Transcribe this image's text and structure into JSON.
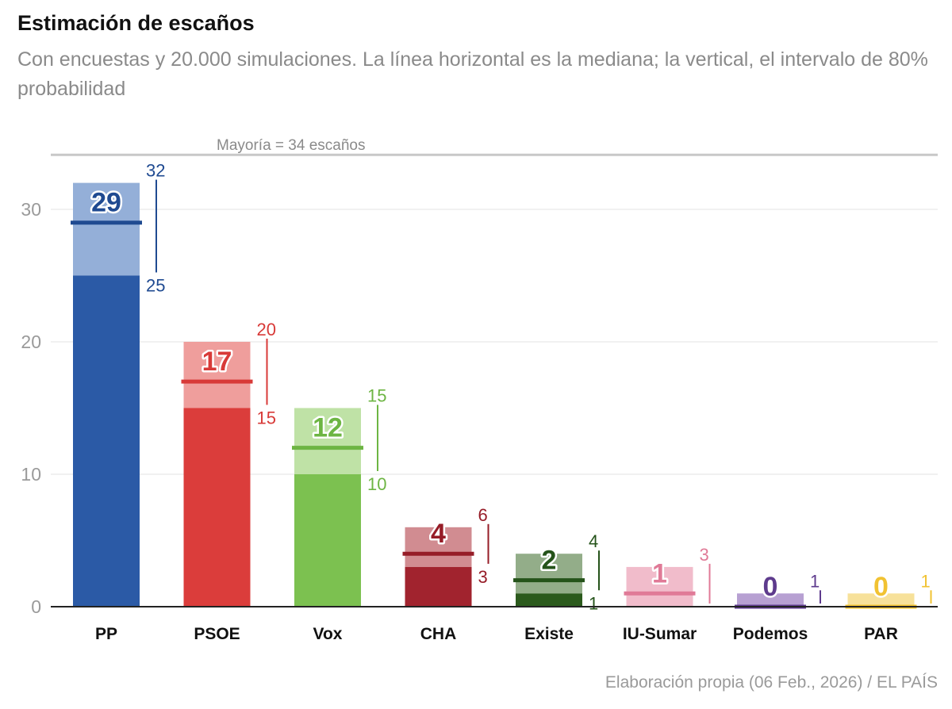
{
  "title": "Estimación de escaños",
  "subtitle": "Con encuestas y 20.000 simulaciones. La línea horizontal es la mediana; la vertical, el intervalo de 80% probabilidad",
  "credit": "Elaboración propia (06 Feb., 2026) / EL PAÍS",
  "chart_data": {
    "type": "bar",
    "title": "Estimación de escaños",
    "xlabel": "",
    "ylabel": "",
    "ylim": [
      0,
      34
    ],
    "yticks": [
      0,
      10,
      20,
      30
    ],
    "grid": true,
    "majority": {
      "value": 34,
      "label": "Mayoría = 34 escaños"
    },
    "categories": [
      "PP",
      "PSOE",
      "Vox",
      "CHA",
      "Existe",
      "IU-Sumar",
      "Podemos",
      "PAR"
    ],
    "parties": [
      {
        "name": "PP",
        "median": 29,
        "low": 25,
        "high": 32,
        "dark": "#2b5aa6",
        "light": "#94afd8",
        "line": "#1f4a91",
        "text": "#1f4a91"
      },
      {
        "name": "PSOE",
        "median": 17,
        "low": 15,
        "high": 20,
        "dark": "#db3d3b",
        "light": "#ef9e9c",
        "line": "#d83a38",
        "text": "#d83a38"
      },
      {
        "name": "Vox",
        "median": 12,
        "low": 10,
        "high": 15,
        "dark": "#7cc150",
        "light": "#bfe2a6",
        "line": "#6db543",
        "text": "#6db543"
      },
      {
        "name": "CHA",
        "median": 4,
        "low": 3,
        "high": 6,
        "dark": "#a1232e",
        "light": "#d18c91",
        "line": "#961c27",
        "text": "#961c27"
      },
      {
        "name": "Existe",
        "median": 2,
        "low": 1,
        "high": 4,
        "dark": "#2b5a1c",
        "light": "#93ad89",
        "line": "#25531a",
        "text": "#25531a"
      },
      {
        "name": "IU-Sumar",
        "median": 1,
        "low": 0,
        "high": 3,
        "dark": "#eeb8c6",
        "light": "#f1bccb",
        "line": "#e07a97",
        "text": "#e07a97"
      },
      {
        "name": "Podemos",
        "median": 0,
        "low": 0,
        "high": 1,
        "dark": "#a58bc5",
        "light": "#b7a0d2",
        "line": "#5e3b8d",
        "text": "#5e3b8d"
      },
      {
        "name": "PAR",
        "median": 0,
        "low": 0,
        "high": 1,
        "dark": "#f5dc8c",
        "light": "#f7e19a",
        "line": "#f1c232",
        "text": "#f1c232"
      }
    ]
  }
}
